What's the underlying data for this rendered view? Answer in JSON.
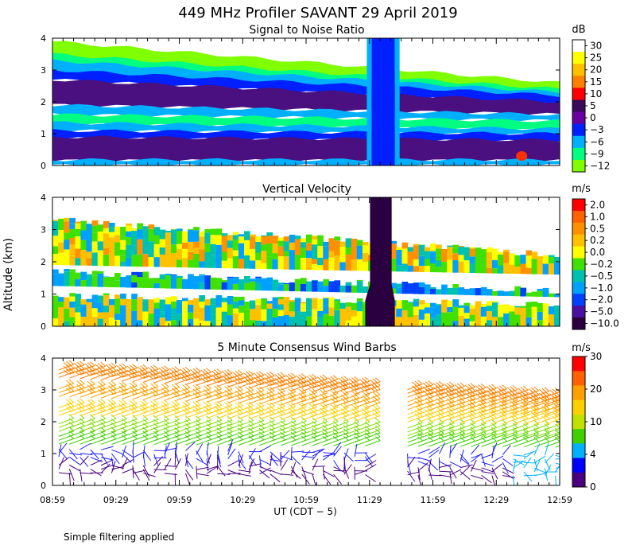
{
  "figure": {
    "title": "449 MHz Profiler SAVANT 29 April 2019",
    "ylabel": "Altitude (km)",
    "xlabel": "UT (CDT − 5)",
    "footnote": "Simple filtering applied",
    "x_ticks": [
      "08:59",
      "09:29",
      "09:59",
      "10:29",
      "10:59",
      "11:29",
      "11:59",
      "12:29",
      "12:59"
    ],
    "y_ticks": [
      0,
      1,
      2,
      3,
      4
    ]
  },
  "chart_data": [
    {
      "type": "heatmap",
      "title": "Signal to Noise Ratio",
      "unit": "dB",
      "xlim": [
        "08:59",
        "12:59"
      ],
      "ylim": [
        0,
        4
      ],
      "colorbar": {
        "labels": [
          "30",
          "25",
          "20",
          "15",
          "10",
          "5",
          "0",
          "−3",
          "−6",
          "−9",
          "−12"
        ],
        "colors": [
          "#ffffff",
          "#ffff00",
          "#ffc000",
          "#ff8000",
          "#ff0000",
          "#3a0a5a",
          "#6a00a0",
          "#0020ff",
          "#00b0ff",
          "#00ff80",
          "#80ff00"
        ]
      },
      "layers": [
        {
          "name": "weak-top",
          "color": "#80ff00",
          "top_start": 3.9,
          "top_end": 2.6,
          "bot_start": 3.3,
          "bot_end": 2.2
        },
        {
          "name": "upper-green",
          "color": "#00ff80",
          "top_start": 3.5,
          "top_end": 2.4,
          "bot_start": 3.1,
          "bot_end": 2.2
        },
        {
          "name": "upper-cyan",
          "color": "#00b0ff",
          "top_start": 3.3,
          "top_end": 2.3,
          "bot_start": 2.9,
          "bot_end": 2.0
        },
        {
          "name": "upper-blue",
          "color": "#0020ff",
          "top_start": 3.0,
          "top_end": 2.2,
          "bot_start": 2.7,
          "bot_end": 1.9
        },
        {
          "name": "upper-purple",
          "color": "#4a1080",
          "top_start": 2.7,
          "top_end": 2.0,
          "bot_start": 1.9,
          "bot_end": 1.6
        },
        {
          "name": "mid-cyan",
          "color": "#00b0ff",
          "top_start": 1.9,
          "top_end": 1.6,
          "bot_start": 1.6,
          "bot_end": 1.4
        },
        {
          "name": "mid-green",
          "color": "#00ff80",
          "top_start": 1.6,
          "top_end": 1.4,
          "bot_start": 1.3,
          "bot_end": 1.1
        },
        {
          "name": "lower-cyan",
          "color": "#00b0ff",
          "top_start": 1.35,
          "top_end": 1.15,
          "bot_start": 1.1,
          "bot_end": 0.95
        },
        {
          "name": "lower-blue",
          "color": "#0020ff",
          "top_start": 1.1,
          "top_end": 1.0,
          "bot_start": 0.85,
          "bot_end": 0.75
        },
        {
          "name": "lower-purple",
          "color": "#4a1080",
          "top_start": 0.9,
          "top_end": 0.8,
          "bot_start": 0.15,
          "bot_end": 0.15
        },
        {
          "name": "surface-cyan",
          "color": "#00b0ff",
          "top_start": 0.18,
          "top_end": 0.18,
          "bot_start": 0.0,
          "bot_end": 0.0
        }
      ],
      "interference": {
        "start": "11:30",
        "end": "11:41",
        "color": "#0020ff"
      },
      "hotspot": {
        "time": "12:41",
        "alt": 0.3,
        "color": "#ff3000"
      }
    },
    {
      "type": "heatmap",
      "title": "Vertical Velocity",
      "unit": "m/s",
      "xlim": [
        "08:59",
        "12:59"
      ],
      "ylim": [
        0,
        4
      ],
      "colorbar": {
        "labels": [
          "2.0",
          "1.0",
          "0.5",
          "0.2",
          "0.0",
          "−0.2",
          "−0.5",
          "−1.0",
          "−2.0",
          "−5.0",
          "−10.0"
        ],
        "colors": [
          "#ff0000",
          "#ff6000",
          "#ff9000",
          "#ffc000",
          "#ffff00",
          "#40e000",
          "#00c0b0",
          "#00a0ff",
          "#0040ff",
          "#4a10a0",
          "#2a0040"
        ]
      },
      "bands": [
        {
          "name": "upper",
          "top_start": 3.3,
          "top_end": 2.2,
          "bot_start": 1.9,
          "bot_end": 1.6,
          "palette": [
            "#ffff00",
            "#ffc000",
            "#40e000",
            "#00c0b0",
            "#ff9000",
            "#00a0ff"
          ]
        },
        {
          "name": "middle",
          "top_start": 1.7,
          "top_end": 1.1,
          "bot_start": 1.25,
          "bot_end": 0.9,
          "palette": [
            "#00a0ff",
            "#00c0b0",
            "#0040ff",
            "#40e000"
          ]
        },
        {
          "name": "lower",
          "top_start": 0.95,
          "top_end": 0.7,
          "bot_start": 0.0,
          "bot_end": 0.0,
          "palette": [
            "#ffff00",
            "#ffc000",
            "#00a0ff",
            "#40e000",
            "#00c0b0"
          ]
        }
      ],
      "interference": {
        "start": "11:27",
        "end": "11:41",
        "color": "#2a0040"
      }
    },
    {
      "type": "scatter",
      "title": "5 Minute Consensus Wind Barbs",
      "unit": "m/s",
      "xlim": [
        "08:59",
        "12:59"
      ],
      "ylim": [
        0,
        4
      ],
      "colorbar": {
        "labels": [
          "30",
          "20",
          "10",
          "4",
          "0"
        ],
        "colors": [
          "#ff0000",
          "#ff6000",
          "#ffa000",
          "#ffd000",
          "#c0e000",
          "#40d000",
          "#00b0ff",
          "#0000ff",
          "#4a0080"
        ]
      },
      "speed_layers": [
        {
          "alt_start": 3.4,
          "alt_end": 2.5,
          "speed": 22,
          "color": "#ff8000"
        },
        {
          "alt_start": 2.8,
          "alt_end": 2.2,
          "speed": 18,
          "color": "#ffa000"
        },
        {
          "alt_start": 2.2,
          "alt_end": 1.9,
          "speed": 14,
          "color": "#ffd000"
        },
        {
          "alt_start": 1.7,
          "alt_end": 1.5,
          "speed": 10,
          "color": "#80e000"
        },
        {
          "alt_start": 1.3,
          "alt_end": 1.2,
          "speed": 8,
          "color": "#40d000"
        },
        {
          "alt_start": 0.9,
          "alt_end": 0.7,
          "speed": 3,
          "color": "#2020ff"
        },
        {
          "alt_start": 0.4,
          "alt_end": 0.3,
          "speed": 2,
          "color": "#4a0080"
        }
      ],
      "gap": {
        "start": "11:29",
        "end": "11:44"
      },
      "late_lowlevel": {
        "start": "12:34",
        "end": "12:59",
        "color": "#00b0ff"
      }
    }
  ]
}
